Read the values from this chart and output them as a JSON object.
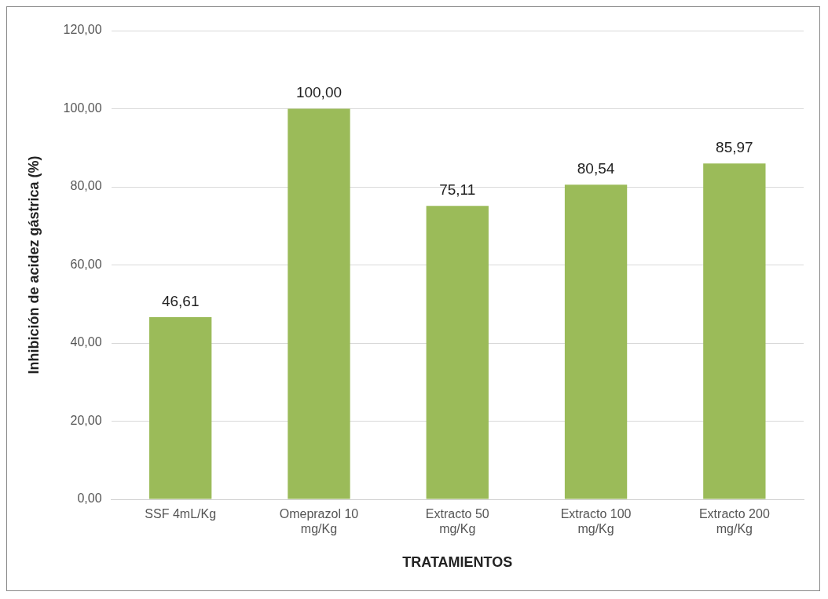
{
  "chart_data": {
    "type": "bar",
    "xlabel": "TRATAMIENTOS",
    "ylabel": "Inhibición de acidez gástrica (%)",
    "categories": [
      "SSF 4mL/Kg",
      "Omeprazol 10 mg/Kg",
      "Extracto 50 mg/Kg",
      "Extracto 100 mg/Kg",
      "Extracto 200 mg/Kg"
    ],
    "values": [
      46.61,
      100.0,
      75.11,
      80.54,
      85.97
    ],
    "value_labels": [
      "46,61",
      "100,00",
      "75,11",
      "80,54",
      "85,97"
    ],
    "color": "#9bbb59",
    "ylim": [
      0,
      120
    ],
    "yticks": [
      {
        "value": 0,
        "label": "0,00"
      },
      {
        "value": 20,
        "label": "20,00"
      },
      {
        "value": 40,
        "label": "40,00"
      },
      {
        "value": 60,
        "label": "60,00"
      },
      {
        "value": 80,
        "label": "80,00"
      },
      {
        "value": 100,
        "label": "100,00"
      },
      {
        "value": 120,
        "label": "120,00"
      }
    ],
    "grid": "y",
    "legend": false
  }
}
